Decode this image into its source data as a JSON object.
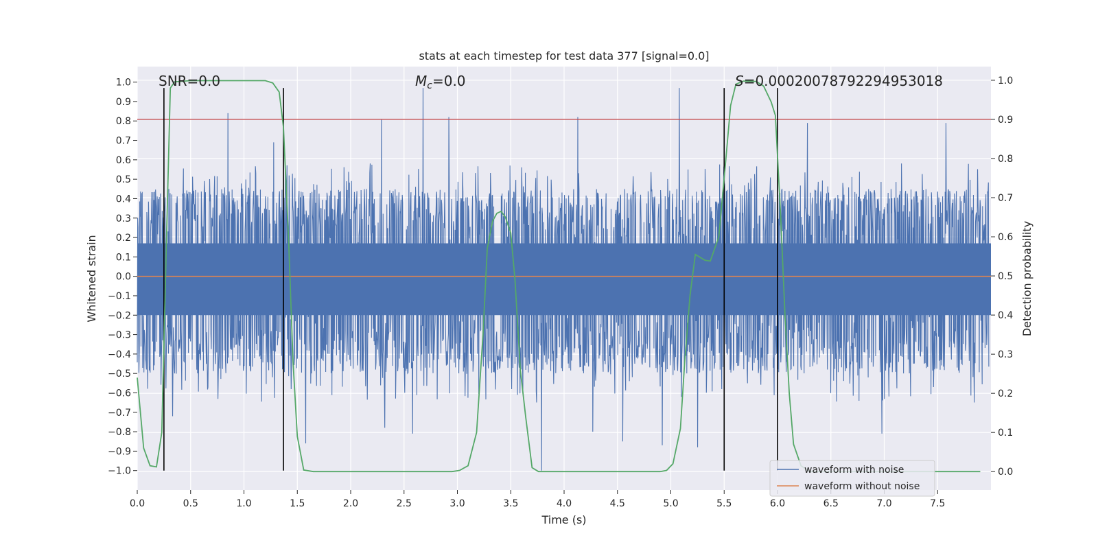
{
  "chart_data": {
    "type": "line",
    "title": "stats at each timestep for test data 377 [signal=0.0]",
    "xlabel": "Time (s)",
    "ylabel": "Whitened strain",
    "y2label": "Detection probability",
    "xlim": [
      0.0,
      8.0
    ],
    "ylim": [
      -1.1,
      1.08
    ],
    "y2lim": [
      -0.047,
      1.035
    ],
    "xticks": [
      "0.0",
      "0.5",
      "1.0",
      "1.5",
      "2.0",
      "2.5",
      "3.0",
      "3.5",
      "4.0",
      "4.5",
      "5.0",
      "5.5",
      "6.0",
      "6.5",
      "7.0",
      "7.5"
    ],
    "yticks": [
      "1.0",
      "0.9",
      "0.8",
      "0.7",
      "0.6",
      "0.5",
      "0.4",
      "0.3",
      "0.2",
      "0.1",
      "0.0",
      "−0.1",
      "−0.2",
      "−0.3",
      "−0.4",
      "−0.5",
      "−0.6",
      "−0.7",
      "−0.8",
      "−0.9",
      "−1.0"
    ],
    "y2ticks": [
      "1.0",
      "0.9",
      "0.8",
      "0.7",
      "0.6",
      "0.5",
      "0.4",
      "0.3",
      "0.2",
      "0.1",
      "0.0"
    ],
    "annotations": {
      "snr": "SNR=0.0",
      "mc": "=0.0",
      "mc_symbol": "M",
      "mc_subscript": "c",
      "s_symbol": "S",
      "s": "=0.00020078792294953018"
    },
    "vlines": [
      0.25,
      1.37,
      5.5,
      6.0
    ],
    "threshold": {
      "value": 0.9,
      "color": "#c44e52"
    },
    "colors": {
      "noisy": "#4c72b0",
      "clean": "#dd8452",
      "prob": "#55a868",
      "vline": "#000000",
      "background": "#eaeaf2",
      "grid": "#ffffff"
    },
    "series": [
      {
        "name": "waveform with noise",
        "generated": true,
        "n_samples": 2048,
        "envelope_upper": 0.45,
        "envelope_lower": -0.5,
        "spikes": [
          [
            0.85,
            0.84
          ],
          [
            1.28,
            0.69
          ],
          [
            2.29,
            0.81
          ],
          [
            2.68,
            0.97
          ],
          [
            2.92,
            0.82
          ],
          [
            4.13,
            0.82
          ],
          [
            5.08,
            0.97
          ],
          [
            6.28,
            0.79
          ],
          [
            7.58,
            0.79
          ],
          [
            3.79,
            -1.0
          ],
          [
            5.25,
            -0.88
          ],
          [
            4.92,
            -0.87
          ],
          [
            4.55,
            -0.85
          ],
          [
            1.58,
            -0.86
          ],
          [
            2.58,
            -0.81
          ],
          [
            6.98,
            -0.81
          ],
          [
            4.27,
            -0.8
          ],
          [
            2.32,
            -0.78
          ],
          [
            0.33,
            -0.72
          ]
        ]
      },
      {
        "name": "waveform without noise",
        "values": [
          [
            0.0,
            0.0
          ],
          [
            8.0,
            0.0
          ]
        ]
      },
      {
        "name": "detection probability",
        "axis": "right",
        "points": [
          [
            0.0,
            0.24
          ],
          [
            0.06,
            0.06
          ],
          [
            0.12,
            0.015
          ],
          [
            0.18,
            0.012
          ],
          [
            0.23,
            0.1
          ],
          [
            0.27,
            0.55
          ],
          [
            0.31,
            0.98
          ],
          [
            0.35,
            0.996
          ],
          [
            0.5,
            0.999
          ],
          [
            1.0,
            0.999
          ],
          [
            1.2,
            0.999
          ],
          [
            1.27,
            0.993
          ],
          [
            1.33,
            0.97
          ],
          [
            1.37,
            0.88
          ],
          [
            1.42,
            0.58
          ],
          [
            1.46,
            0.28
          ],
          [
            1.5,
            0.09
          ],
          [
            1.56,
            0.004
          ],
          [
            1.65,
            0.0
          ],
          [
            2.8,
            0.0
          ],
          [
            2.95,
            0.0
          ],
          [
            3.02,
            0.003
          ],
          [
            3.1,
            0.015
          ],
          [
            3.18,
            0.1
          ],
          [
            3.24,
            0.35
          ],
          [
            3.28,
            0.57
          ],
          [
            3.33,
            0.64
          ],
          [
            3.37,
            0.66
          ],
          [
            3.41,
            0.665
          ],
          [
            3.45,
            0.65
          ],
          [
            3.5,
            0.61
          ],
          [
            3.54,
            0.49
          ],
          [
            3.59,
            0.26
          ],
          [
            3.64,
            0.14
          ],
          [
            3.7,
            0.01
          ],
          [
            3.76,
            0.0
          ],
          [
            4.5,
            0.0
          ],
          [
            4.9,
            0.0
          ],
          [
            4.96,
            0.003
          ],
          [
            5.02,
            0.02
          ],
          [
            5.09,
            0.11
          ],
          [
            5.13,
            0.28
          ],
          [
            5.18,
            0.45
          ],
          [
            5.23,
            0.555
          ],
          [
            5.32,
            0.54
          ],
          [
            5.37,
            0.538
          ],
          [
            5.45,
            0.6
          ],
          [
            5.51,
            0.78
          ],
          [
            5.56,
            0.935
          ],
          [
            5.61,
            0.99
          ],
          [
            5.68,
            0.998
          ],
          [
            5.8,
            0.997
          ],
          [
            5.87,
            0.985
          ],
          [
            5.94,
            0.945
          ],
          [
            5.98,
            0.91
          ],
          [
            6.03,
            0.65
          ],
          [
            6.07,
            0.4
          ],
          [
            6.11,
            0.2
          ],
          [
            6.15,
            0.07
          ],
          [
            6.22,
            0.015
          ],
          [
            6.3,
            0.0
          ],
          [
            7.9,
            0.0
          ]
        ]
      }
    ],
    "legend": {
      "placement": "lower-right",
      "entries": [
        "waveform with noise",
        "waveform without noise"
      ]
    }
  }
}
